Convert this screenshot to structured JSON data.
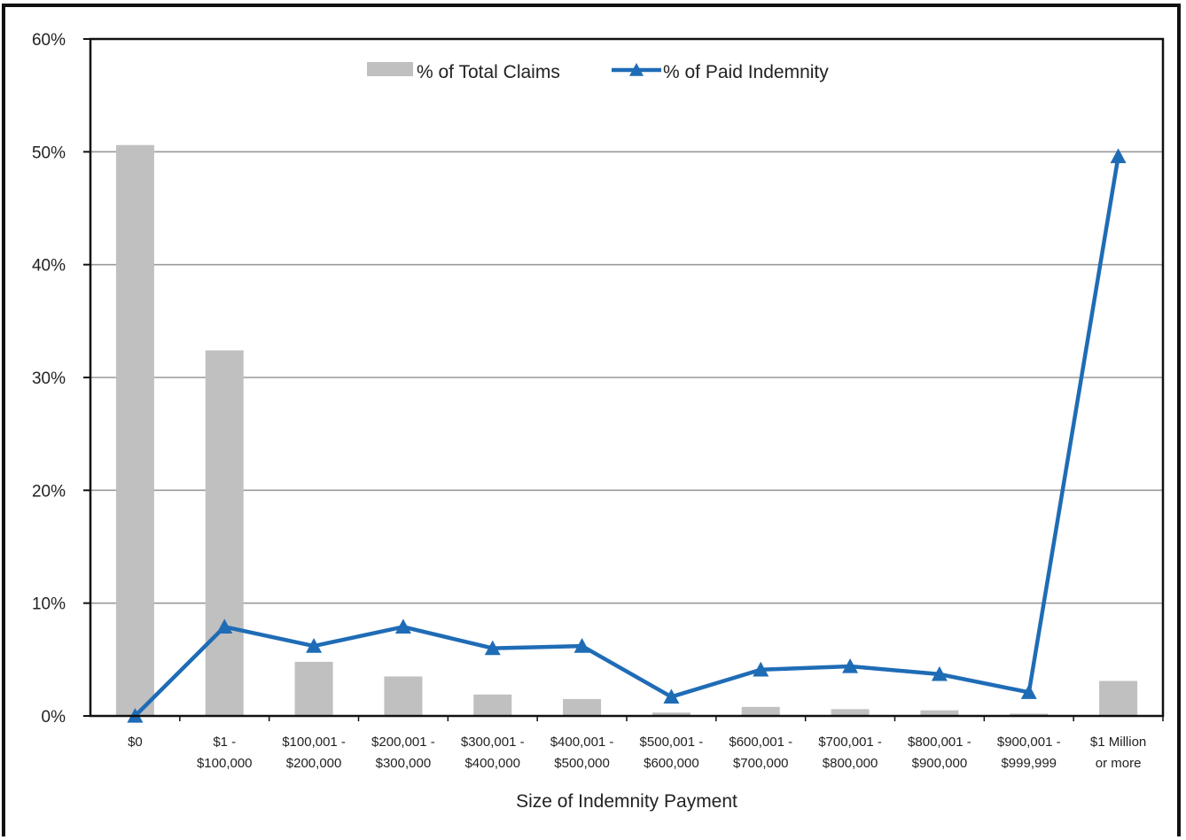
{
  "chart_data": {
    "type": "bar",
    "title": "",
    "xlabel": "Size of Indemnity Payment",
    "ylabel": "",
    "ylim": [
      0,
      60
    ],
    "yticks": [
      "0%",
      "10%",
      "20%",
      "30%",
      "40%",
      "50%",
      "60%"
    ],
    "grid": true,
    "legend_position": "top-center",
    "categories": [
      [
        "$0",
        ""
      ],
      [
        "$1 -",
        "$100,000"
      ],
      [
        "$100,001 -",
        "$200,000"
      ],
      [
        "$200,001 -",
        "$300,000"
      ],
      [
        "$300,001 -",
        "$400,000"
      ],
      [
        "$400,001 -",
        "$500,000"
      ],
      [
        "$500,001 -",
        "$600,000"
      ],
      [
        "$600,001 -",
        "$700,000"
      ],
      [
        "$700,001 -",
        "$800,000"
      ],
      [
        "$800,001 -",
        "$900,000"
      ],
      [
        "$900,001 -",
        "$999,999"
      ],
      [
        "$1 Million",
        "or more"
      ]
    ],
    "series": [
      {
        "name": "% of Total Claims",
        "type": "bar",
        "color": "#c0c0c0",
        "values": [
          50.6,
          32.4,
          4.8,
          3.5,
          1.9,
          1.5,
          0.3,
          0.8,
          0.6,
          0.5,
          0.2,
          3.1
        ]
      },
      {
        "name": "% of Paid Indemnity",
        "type": "line",
        "marker": "triangle",
        "color": "#1f6cb6",
        "values": [
          0,
          7.9,
          6.2,
          7.9,
          6.0,
          6.2,
          1.7,
          4.1,
          4.4,
          3.7,
          2.1,
          49.6
        ]
      }
    ]
  }
}
